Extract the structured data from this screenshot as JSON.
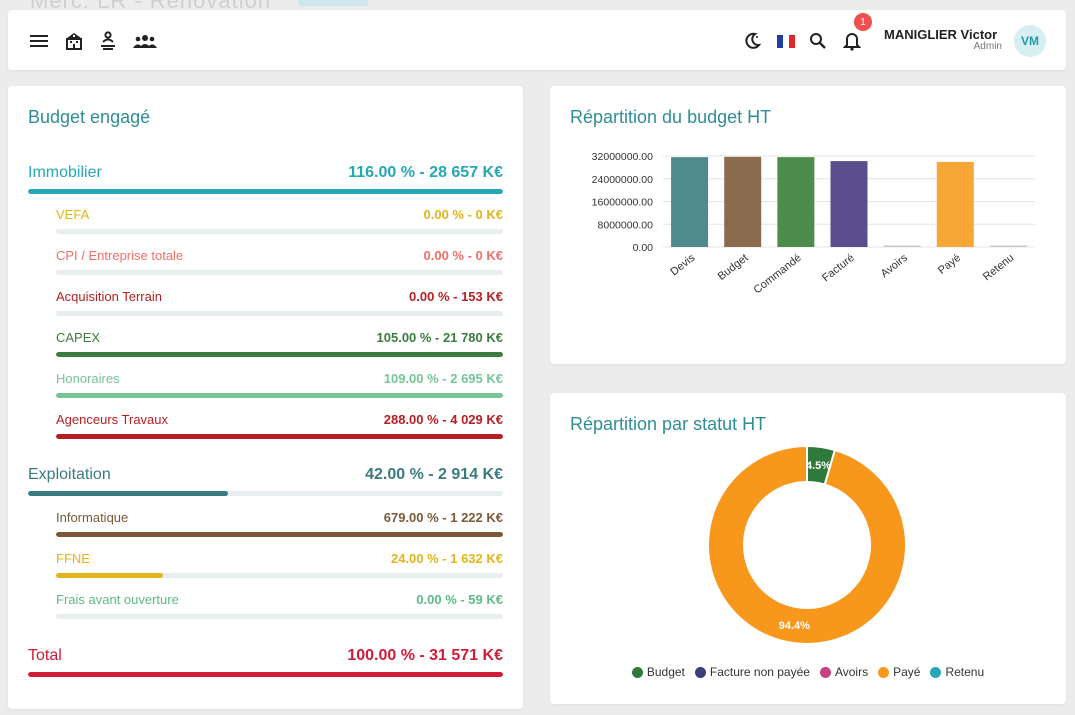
{
  "page_header": {
    "title": "Merc. LR - Rénovation"
  },
  "topbar": {
    "icons": [
      "menu-icon",
      "building-icon",
      "person-icon",
      "group-icon",
      "moon-icon",
      "flag-fr-icon",
      "search-icon",
      "bell-icon"
    ],
    "notifications_count": "1",
    "user_name": "MANIGLIER Victor",
    "user_role": "Admin",
    "avatar_initials": "VM"
  },
  "budget": {
    "title": "Budget engagé",
    "groups": [
      {
        "label": "Immobilier",
        "value": "116.00 % - 28 657 K€",
        "color": "#24a9b4",
        "fill": 1.0,
        "items": [
          {
            "label": "VEFA",
            "value": "0.00 % - 0 K€",
            "color": "#e3b51c",
            "fill": 0
          },
          {
            "label": "CPI / Entreprise totale",
            "value": "0.00 % - 0 K€",
            "color": "#ef7067",
            "fill": 0
          },
          {
            "label": "Acquisition Terrain",
            "value": "0.00 % - 153 K€",
            "color": "#b52222",
            "fill": 0
          },
          {
            "label": "CAPEX",
            "value": "105.00 % - 21 780 K€",
            "color": "#3a7d3e",
            "fill": 1.0
          },
          {
            "label": "Honoraires",
            "value": "109.00 % - 2 695 K€",
            "color": "#75c596",
            "fill": 1.0
          },
          {
            "label": "Agenceurs Travaux",
            "value": "288.00 % - 4 029 K€",
            "color": "#b51f24",
            "fill": 1.0
          }
        ]
      },
      {
        "label": "Exploitation",
        "value": "42.00 % - 2 914 K€",
        "color": "#3a7b80",
        "fill": 0.42,
        "items": [
          {
            "label": "Informatique",
            "value": "679.00 % - 1 222 K€",
            "color": "#7a5a38",
            "fill": 1.0
          },
          {
            "label": "FFNE",
            "value": "24.00 % - 1 632 K€",
            "color": "#e3b51c",
            "fill": 0.24
          },
          {
            "label": "Frais avant ouverture",
            "value": "0.00 % - 59 K€",
            "color": "#5dbb87",
            "fill": 0
          }
        ]
      }
    ],
    "total": {
      "label": "Total",
      "value": "100.00 % - 31 571 K€",
      "color": "#d01c38",
      "fill": 1.0
    }
  },
  "chart_data": [
    {
      "type": "bar",
      "title": "Répartition du budget HT",
      "categories": [
        "Devis",
        "Budget",
        "Commandé",
        "Facturé",
        "Avoirs",
        "Payé",
        "Retenu"
      ],
      "values": [
        31600000,
        31700000,
        31600000,
        30200000,
        0,
        29900000,
        0
      ],
      "colors": [
        "#4f8b8b",
        "#8b6b4e",
        "#4c8d4e",
        "#5a4f8c",
        "#c9c9c9",
        "#f6a735",
        "#c9c9c9"
      ],
      "yticks": [
        "32000000.00",
        "24000000.00",
        "16000000.00",
        "8000000.00",
        "0.00"
      ],
      "ylim": [
        0,
        32000000
      ],
      "grid": true
    },
    {
      "type": "pie",
      "title": "Répartition par statut HT",
      "donut": true,
      "slices": [
        {
          "name": "Budget",
          "value": 4.5,
          "label": "4.5%",
          "color": "#2f7a3a"
        },
        {
          "name": "Facture non payée",
          "value": 0,
          "label": "",
          "color": "#3e3e7a"
        },
        {
          "name": "Avoirs",
          "value": 0,
          "label": "",
          "color": "#c5427f"
        },
        {
          "name": "Payé",
          "value": 94.4,
          "label": "94.4%",
          "color": "#f7981d"
        },
        {
          "name": "Retenu",
          "value": 0,
          "label": "",
          "color": "#26a6b5"
        }
      ],
      "legend_position": "bottom"
    }
  ]
}
